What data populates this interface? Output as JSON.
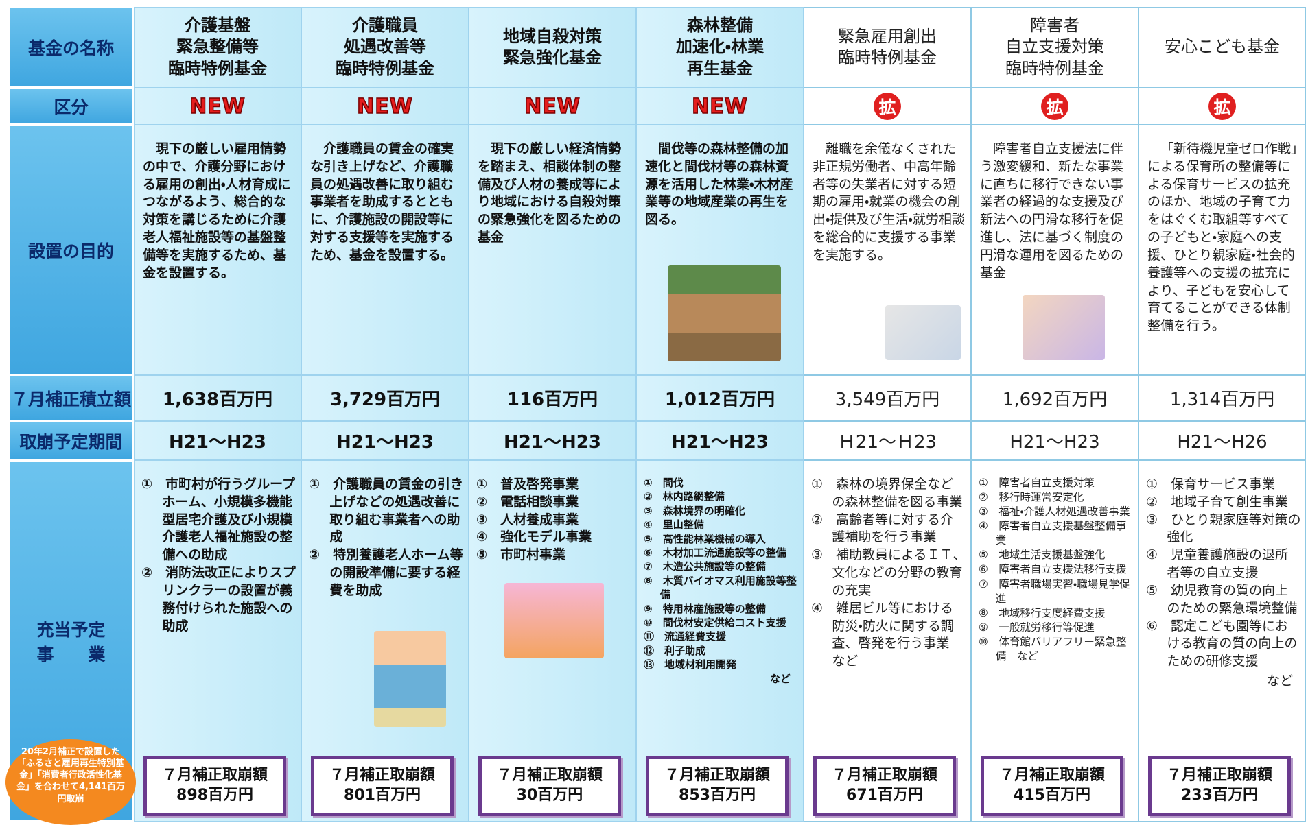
{
  "row_labels": [
    "基金の名称",
    "区分",
    "設置の目的",
    "７月補正積立額",
    "取崩予定期間",
    "充当予定\n事　　業"
  ],
  "columns": [
    {
      "name": "介護基盤\n緊急整備等\n臨時特例基金",
      "category": "NEW",
      "purpose": "現下の厳しい雇用情勢の中で、介護分野における雇用の創出・人材育成につながるよう、総合的な対策を講じるために介護老人福祉施設等の基盤整備等を実施するため、基金を設置する。",
      "amount": "1,638百万円",
      "period": "H21～H23",
      "projects": [
        "①　市町村が行うグループホーム、小規模多機能型居宅介護及び小規模介護老人福祉施設の整備への助成",
        "②　消防法改正によりスプリンクラーの設置が義務付けられた施設への助成"
      ],
      "reversal_label": "７月補正取崩額",
      "reversal_amount": "898百万円"
    },
    {
      "name": "介護職員\n処遇改善等\n臨時特例基金",
      "category": "NEW",
      "purpose": "介護職員の賃金の確実な引き上げなど、介護職員の処遇改善に取り組む事業者を助成するとともに、介護施設の開設等に対する支援等を実施するため、基金を設置する。",
      "amount": "3,729百万円",
      "period": "H21～H23",
      "projects": [
        "①　介護職員の賃金の引き上げなどの処遇改善に取り組む事業者への助成",
        "②　特別養護老人ホーム等の開設準備に要する経費を助成"
      ],
      "reversal_label": "７月補正取崩額",
      "reversal_amount": "801百万円"
    },
    {
      "name": "地域自殺対策\n緊急強化基金",
      "category": "NEW",
      "purpose": "現下の厳しい経済情勢を踏まえ、相談体制の整備及び人材の養成等により地域における自殺対策の緊急強化を図るための基金",
      "amount": "116百万円",
      "period": "H21～H23",
      "projects": [
        "①　普及啓発事業",
        "②　電話相談事業",
        "③　人材養成事業",
        "④　強化モデル事業",
        "⑤　市町村事業"
      ],
      "reversal_label": "７月補正取崩額",
      "reversal_amount": "30百万円"
    },
    {
      "name": "森林整備\n加速化・林業\n再生基金",
      "category": "NEW",
      "purpose": "間伐等の森林整備の加速化と間伐材等の森林資源を活用した林業・木材産業等の地域産業の再生を図る。",
      "amount": "1,012百万円",
      "period": "H21～H23",
      "projects": [
        "①　間伐",
        "②　林内路網整備",
        "③　森林境界の明確化",
        "④　里山整備",
        "⑤　高性能林業機械の導入",
        "⑥　木材加工流通施設等の整備",
        "⑦　木造公共施設等の整備",
        "⑧　木質バイオマス利用施設等整備",
        "⑨　特用林産施設等の整備",
        "⑩　間伐材安定供給コスト支援",
        "⑪　流通経費支援",
        "⑫　利子助成",
        "⑬　地域材利用開発"
      ],
      "closing": "など",
      "reversal_label": "７月補正取崩額",
      "reversal_amount": "853百万円"
    },
    {
      "name": "緊急雇用創出\n臨時特例基金",
      "category": "拡",
      "purpose": "離職を余儀なくされた非正規労働者、中高年齢者等の失業者に対する短期の雇用・就業の機会の創出・提供及び生活・就労相談を総合的に支援する事業を実施する。",
      "amount": "3,549百万円",
      "period": "Ｈ21～Ｈ23",
      "projects": [
        "①　森林の境界保全などの森林整備を図る事業",
        "②　高齢者等に対する介護補助を行う事業",
        "③　補助教員によるＩＴ、文化などの分野の教育の充実",
        "④　雑居ビル等における防災・防火に関する調査、啓発を行う事業　など"
      ],
      "reversal_label": "７月補正取崩額",
      "reversal_amount": "671百万円"
    },
    {
      "name": "障害者\n自立支援対策\n臨時特例基金",
      "category": "拡",
      "purpose": "障害者自立支援法に伴う激変緩和、新たな事業に直ちに移行できない事業者の経過的な支援及び新法への円滑な移行を促進し、法に基づく制度の円滑な運用を図るための基金",
      "amount": "1,692百万円",
      "period": "H21～H23",
      "projects": [
        "①　障害者自立支援対策",
        "②　移行時運営安定化",
        "③　福祉・介護人材処遇改善事業",
        "④　障害者自立支援基盤整備事業",
        "⑤　地域生活支援基盤強化",
        "⑥　障害者自立支援法移行支援",
        "⑦　障害者職場実習・職場見学促進",
        "⑧　地域移行支度経費支援",
        "⑨　一般就労移行等促進",
        "⑩　体育館バリアフリー緊急整備　など"
      ],
      "reversal_label": "７月補正取崩額",
      "reversal_amount": "415百万円"
    },
    {
      "name": "安心こども基金",
      "category": "拡",
      "purpose": "「新待機児童ゼロ作戦」による保育所の整備等による保育サービスの拡充のほか、地域の子育て力をはぐくむ取組等すべての子どもと・家庭への支援、ひとり親家庭・社会的養護等への支援の拡充により、子どもを安心して育てることができる体制整備を行う。",
      "amount": "1,314百万円",
      "period": "H21～H26",
      "projects": [
        "①　保育サービス事業",
        "②　地域子育て創生事業",
        "③　ひとり親家庭等対策の強化",
        "④　児童養護施設の退所者等の自立支援",
        "⑤　幼児教育の質の向上のための緊急環境整備",
        "⑥　認定こども園等における教育の質の向上のための研修支援"
      ],
      "closing": "など",
      "reversal_label": "７月補正取崩額",
      "reversal_amount": "233百万円"
    }
  ],
  "note": "20年2月補正で設置した「ふるさと雇用再生特別基金」「消費者行政活性化基金」を合わせて4,141百万円取崩"
}
